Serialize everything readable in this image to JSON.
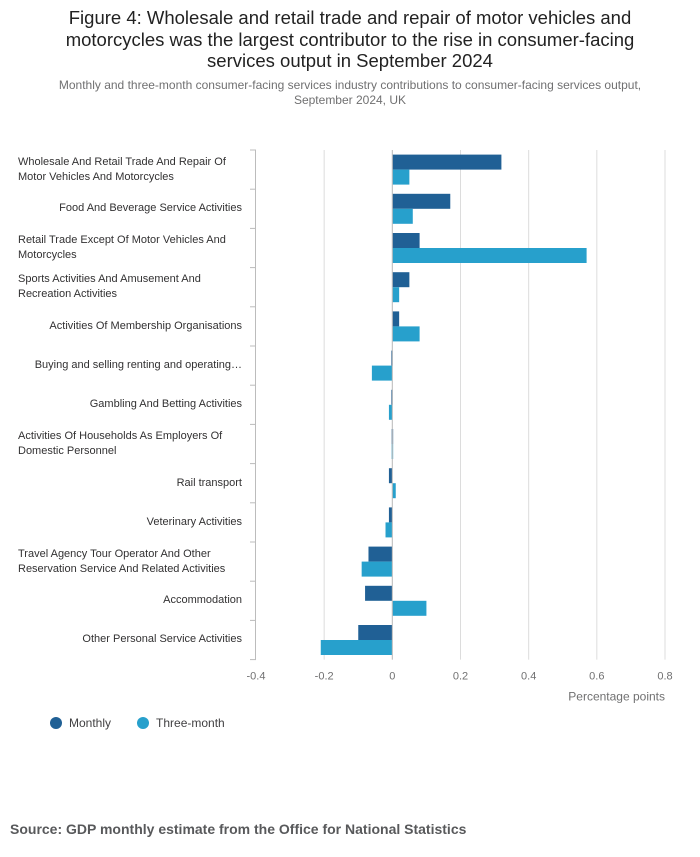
{
  "title": "Figure 4: Wholesale and retail trade and repair of motor vehicles and motorcycles was the largest contributor to the rise in consumer-facing services output in September 2024",
  "subtitle": "Monthly and three-month consumer-facing services industry contributions to consumer-facing services output, September 2024, UK",
  "source": "Source: GDP monthly estimate from the Office for National Statistics",
  "colors": {
    "monthly": "#206095",
    "three_month": "#27a0cc",
    "grid": "#dcdcdc",
    "axis": "#bcbcbc"
  },
  "chart_data": {
    "type": "bar",
    "orientation": "horizontal",
    "categories": [
      "Wholesale And Retail Trade And Repair Of Motor Vehicles And Motorcycles",
      "Food And Beverage Service Activities",
      "Retail Trade Except Of Motor Vehicles And Motorcycles",
      "Sports Activities And Amusement And Recreation Activities",
      "Activities Of Membership Organisations",
      "Buying and selling renting and operating…",
      "Gambling And Betting Activities",
      "Activities Of Households As Employers Of Domestic Personnel",
      "Rail transport",
      "Veterinary Activities",
      "Travel Agency Tour Operator And Other Reservation Service And Related Activities",
      "Accommodation",
      "Other Personal Service Activities"
    ],
    "series": [
      {
        "name": "Monthly",
        "values": [
          0.32,
          0.17,
          0.08,
          0.05,
          0.02,
          -0.003,
          -0.003,
          -0.002,
          -0.01,
          -0.01,
          -0.07,
          -0.08,
          -0.1
        ]
      },
      {
        "name": "Three-month",
        "values": [
          0.05,
          0.06,
          0.57,
          0.02,
          0.08,
          -0.06,
          -0.01,
          -0.002,
          0.01,
          -0.02,
          -0.09,
          0.1,
          -0.21
        ]
      }
    ],
    "xlabel": "Percentage points",
    "xlim": [
      -0.4,
      0.8
    ],
    "xticks": [
      -0.4,
      -0.2,
      0,
      0.2,
      0.4,
      0.6,
      0.8
    ],
    "xtick_labels": [
      "-0.4",
      "-0.2",
      "0",
      "0.2",
      "0.4",
      "0.6",
      "0.8"
    ],
    "grid": true,
    "legend_position": "bottom-left"
  }
}
